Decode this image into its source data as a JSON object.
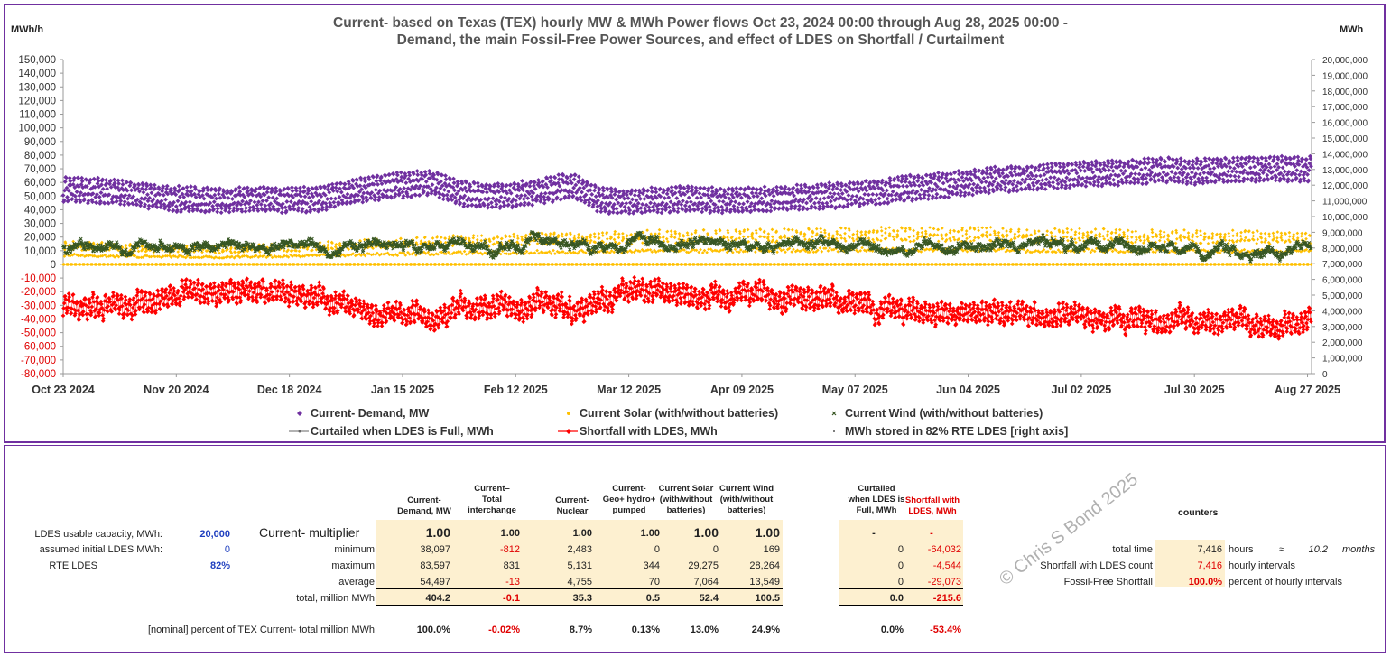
{
  "chart_data": {
    "type": "scatter",
    "title_line1": "Current-  based on Texas (TEX) hourly MW & MWh Power flows Oct 23, 2024 00:00 through Aug 28, 2025 00:00 -",
    "title_line2": "Demand, the main Fossil-Free Power Sources, and effect of LDES on Shortfall / Curtailment",
    "ylabel_left": "MWh/h",
    "ylabel_right": "MWh",
    "ylim_left": [
      -80000,
      150000
    ],
    "ylim_right": [
      0,
      20000000
    ],
    "left_ticks": [
      "150,000",
      "140,000",
      "130,000",
      "120,000",
      "110,000",
      "100,000",
      "90,000",
      "80,000",
      "70,000",
      "60,000",
      "50,000",
      "40,000",
      "30,000",
      "20,000",
      "10,000",
      "0",
      "-10,000",
      "-20,000",
      "-30,000",
      "-40,000",
      "-50,000",
      "-60,000",
      "-70,000",
      "-80,000"
    ],
    "right_ticks": [
      "20,000,000",
      "19,000,000",
      "18,000,000",
      "17,000,000",
      "16,000,000",
      "15,000,000",
      "14,000,000",
      "13,000,000",
      "12,000,000",
      "11,000,000",
      "10,000,000",
      "9,000,000",
      "8,000,000",
      "7,000,000",
      "6,000,000",
      "5,000,000",
      "4,000,000",
      "3,000,000",
      "2,000,000",
      "1,000,000",
      "0"
    ],
    "x_ticks": [
      "Oct 23 2024",
      "Nov 20 2024",
      "Dec 18 2024",
      "Jan 15 2025",
      "Feb 12 2025",
      "Mar 12 2025",
      "Apr 09 2025",
      "May 07 2025",
      "Jun 04 2025",
      "Jul 02 2025",
      "Jul 30 2025",
      "Aug 27 2025"
    ],
    "x_days": [
      0,
      28,
      56,
      84,
      112,
      140,
      168,
      196,
      224,
      252,
      280,
      308
    ],
    "x_range_days": [
      0,
      309
    ],
    "series": [
      {
        "name": "Current- Demand, MW",
        "color": "#7030a0",
        "axis": "left",
        "weekly_mid": [
          55000,
          54000,
          53000,
          50000,
          48000,
          47000,
          47000,
          48000,
          47000,
          48000,
          52000,
          56000,
          58000,
          60000,
          52000,
          50000,
          51000,
          54000,
          58000,
          47000,
          46000,
          47000,
          48000,
          47000,
          47000,
          48000,
          49000,
          50000,
          52000,
          53000,
          56000,
          58000,
          60000,
          62000,
          63000,
          65000,
          66000,
          67000,
          68000,
          69000,
          68000,
          69000,
          70000,
          70000,
          70000
        ],
        "band": 12000
      },
      {
        "name": "Current Solar (with/without batteries)",
        "color": "#ffc000",
        "axis": "left",
        "weekly_peak": [
          18000,
          17000,
          16000,
          15000,
          15000,
          14000,
          14000,
          15000,
          16000,
          17000,
          18000,
          19000,
          20000,
          21000,
          22000,
          22000,
          23000,
          24000,
          24000,
          25000,
          25000,
          26000,
          26000,
          26000,
          27000,
          27000,
          27000,
          28000,
          28000,
          28000,
          28000,
          28000,
          28000,
          28000,
          27000,
          27000,
          27000,
          27000,
          26000,
          26000,
          26000,
          26000,
          26000,
          25000,
          25000
        ]
      },
      {
        "name": "Current Wind (with/without  batteries)",
        "color": "#375623",
        "axis": "left",
        "weekly_mid": [
          13000,
          14000,
          12000,
          15000,
          11000,
          13000,
          14000,
          12000,
          16000,
          10000,
          14000,
          15000,
          12000,
          16000,
          13000,
          12000,
          15000,
          17000,
          14000,
          13000,
          18000,
          16000,
          15000,
          17000,
          14000,
          12000,
          16000,
          15000,
          13000,
          15000,
          16000,
          12000,
          14000,
          15000,
          12000,
          11000,
          13000,
          14000,
          12000,
          13000,
          10000,
          12000,
          11000,
          10000,
          11000
        ],
        "band": 9000
      },
      {
        "name": "Curtailed when LDES is Full, MWh",
        "color": "#555555",
        "axis": "left"
      },
      {
        "name": "Shortfall with LDES, MWh",
        "color": "#ff0000",
        "axis": "left",
        "weekly_mid": [
          -32000,
          -30000,
          -27000,
          -25000,
          -22000,
          -20000,
          -22000,
          -24000,
          -22000,
          -26000,
          -30000,
          -38000,
          -36000,
          -40000,
          -30000,
          -28000,
          -30000,
          -32000,
          -38000,
          -22000,
          -20000,
          -22000,
          -24000,
          -22000,
          -22000,
          -22000,
          -24000,
          -25000,
          -30000,
          -32000,
          -34000,
          -36000,
          -35000,
          -36000,
          -34000,
          -36000,
          -38000,
          -40000,
          -40000,
          -42000,
          -43000,
          -42000,
          -44000,
          -45000,
          -44000
        ],
        "band": 11000
      },
      {
        "name": "MWh stored in 82% RTE LDES [right axis]",
        "color": "#555555",
        "axis": "right"
      }
    ]
  },
  "table": {
    "col_headers": [
      "Current-\nDemand, MW",
      "Current–\nTotal\ninterchange",
      "Current-\nNuclear",
      "Current-\nGeo+ hydro+\npumped",
      "Current Solar\n(with/without\nbatteries)",
      "Current Wind\n(with/without\nbatteries)",
      "Curtailed\nwhen LDES is\nFull, MWh",
      "Shortfall with\nLDES, MWh"
    ],
    "params": [
      {
        "label": "LDES usable capacity, MWh:",
        "value": "20,000"
      },
      {
        "label": "assumed initial LDES MWh:",
        "value": "0"
      },
      {
        "label": "RTE LDES",
        "value": "82%"
      }
    ],
    "row_labels": [
      "Current- multiplier",
      "minimum",
      "maximum",
      "average",
      "total, million MWh"
    ],
    "rows": [
      [
        "1.00",
        "1.00",
        "1.00",
        "1.00",
        "1.00",
        "1.00",
        "-",
        "-"
      ],
      [
        "38,097",
        "-812",
        "2,483",
        "0",
        "0",
        "169",
        "0",
        "-64,032"
      ],
      [
        "83,597",
        "831",
        "5,131",
        "344",
        "29,275",
        "28,264",
        "0",
        "-4,544"
      ],
      [
        "54,497",
        "-13",
        "4,755",
        "70",
        "7,064",
        "13,549",
        "0",
        "-29,073"
      ],
      [
        "404.2",
        "-0.1",
        "35.3",
        "0.5",
        "52.4",
        "100.5",
        "0.0",
        "-215.6"
      ]
    ],
    "percent_label": "[nominal] percent of TEX Current- total million MWh",
    "percent_row": [
      "100.0%",
      "-0.02%",
      "8.7%",
      "0.13%",
      "13.0%",
      "24.9%",
      "0.0%",
      "-53.4%"
    ],
    "counters": {
      "title": "counters",
      "total_time_label": "total time",
      "total_time_value": "7,416",
      "total_time_unit": "hours",
      "approx": "≈",
      "months_value": "10.2",
      "months_unit": "months",
      "shortfall_label": "Shortfall with LDES count",
      "shortfall_value": "7,416",
      "shortfall_unit": "hourly intervals",
      "ff_label": "Fossil-Free Shortfall",
      "ff_value": "100.0%",
      "ff_unit": "percent of hourly intervals"
    },
    "watermark": "© Chris S Bond  2025"
  },
  "colors": {
    "frame": "#7030a0",
    "demand": "#7030a0",
    "solar": "#ffc000",
    "wind": "#375623",
    "shortfall": "#ff0000",
    "shade": "#fdf0d0",
    "blue": "#1f3fbf"
  }
}
